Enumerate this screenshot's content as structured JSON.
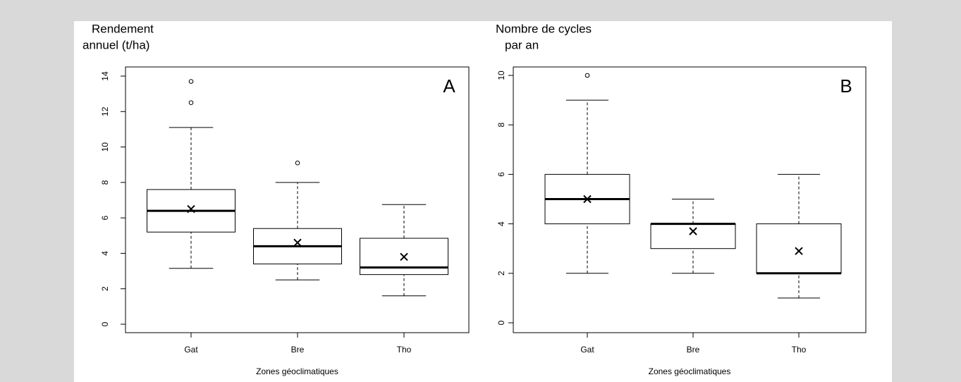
{
  "chart_data": [
    {
      "type": "box",
      "ylabel": [
        "Rendement",
        "annuel (t/ha)"
      ],
      "annotation": "A",
      "xlabel": "Zones géoclimatiques",
      "categories": [
        "Gat",
        "Bre",
        "Tho"
      ],
      "boxes": [
        {
          "whislo": 3.15,
          "q1": 5.2,
          "med": 6.4,
          "q3": 7.6,
          "whishi": 11.1,
          "mean": 6.5,
          "fliers": [
            12.5,
            13.7
          ]
        },
        {
          "whislo": 2.5,
          "q1": 3.4,
          "med": 4.4,
          "q3": 5.4,
          "whishi": 8.0,
          "mean": 4.6,
          "fliers": [
            9.1
          ]
        },
        {
          "whislo": 1.6,
          "q1": 2.8,
          "med": 3.2,
          "q3": 4.85,
          "whishi": 6.75,
          "mean": 3.8
        }
      ],
      "ylim": [
        0,
        14
      ],
      "yticks": [
        0,
        2,
        4,
        6,
        8,
        10,
        12,
        14
      ],
      "color": "#000000"
    },
    {
      "type": "box",
      "ylabel": [
        "Nombre de cycles",
        "par an"
      ],
      "annotation": "B",
      "xlabel": "Zones géoclimatiques",
      "categories": [
        "Gat",
        "Bre",
        "Tho"
      ],
      "boxes": [
        {
          "whislo": 2,
          "q1": 4,
          "med": 5,
          "q3": 6,
          "whishi": 9,
          "mean": 5,
          "fliers": [
            10
          ]
        },
        {
          "whislo": 2,
          "q1": 3,
          "med": 4,
          "q3": 4,
          "whishi": 5,
          "mean": 3.7
        },
        {
          "whislo": 1,
          "q1": 2,
          "med": 2,
          "q3": 4,
          "whishi": 6,
          "mean": 2.9
        }
      ],
      "ylim": [
        0,
        10
      ],
      "yticks": [
        0,
        2,
        4,
        6,
        8,
        10
      ],
      "color": "#000000"
    }
  ]
}
